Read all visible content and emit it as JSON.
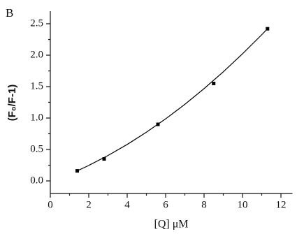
{
  "chart_data": {
    "type": "scatter",
    "panel_label": "B",
    "x_label": "[Q] μM",
    "y_label": "(F₀/F-1)",
    "xlim": [
      0,
      12.6
    ],
    "ylim": [
      -0.2,
      2.7
    ],
    "xticks": [
      0,
      2,
      4,
      6,
      8,
      10,
      12
    ],
    "xminor_ticks": [
      1,
      3,
      5,
      7,
      9,
      11
    ],
    "yticks": [
      {
        "value": 0,
        "label": "0.0"
      },
      0.5,
      {
        "value": 1,
        "label": "1.0"
      },
      1.5,
      {
        "value": 2,
        "label": "2.0"
      },
      2.5
    ],
    "yminor_ticks": [
      0.25,
      0.75,
      1.25,
      1.75,
      2.25
    ],
    "color": "#000000",
    "series": [
      {
        "mode": "markers",
        "x": [
          1.4,
          2.8,
          5.6,
          8.5,
          11.3
        ],
        "values": [
          0.16,
          0.35,
          0.9,
          1.55,
          2.42
        ]
      },
      {
        "mode": "line",
        "x": [
          1.4,
          2,
          3,
          4,
          5,
          6,
          7,
          8,
          9,
          10,
          11,
          11.3
        ],
        "values": [
          0.16,
          0.246,
          0.404,
          0.58,
          0.775,
          0.987,
          1.218,
          1.468,
          1.735,
          2.021,
          2.325,
          2.42
        ]
      }
    ]
  }
}
